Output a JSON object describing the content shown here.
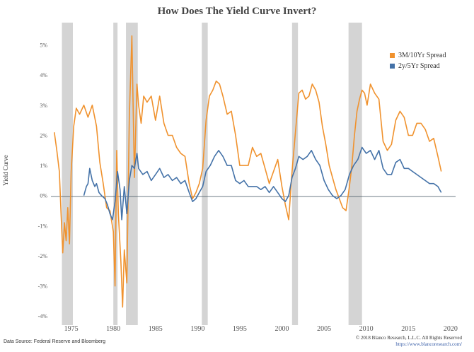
{
  "chart_data": {
    "type": "line",
    "title": "How Does The Yield Curve Invert?",
    "ylabel": "Yield Curve",
    "xlabel": "",
    "xlim": [
      1972.6,
      2020.6
    ],
    "ylim": [
      -4.3,
      5.6
    ],
    "y_ticks": [
      "5%",
      "4%",
      "3%",
      "2%",
      "1%",
      "0%",
      "-1%",
      "-2%",
      "-3%",
      "-4%"
    ],
    "y_tick_values": [
      5,
      4,
      3,
      2,
      1,
      0,
      -1,
      -2,
      -3,
      -4
    ],
    "x_ticks": [
      "1975",
      "1980",
      "1985",
      "1990",
      "1995",
      "2000",
      "2005",
      "2010",
      "2015",
      "2020"
    ],
    "x_tick_values": [
      1975,
      1980,
      1985,
      1990,
      1995,
      2000,
      2005,
      2010,
      2015,
      2020
    ],
    "grid": false,
    "legend_position": "top-right",
    "recessions": [
      [
        1973.9,
        1975.2
      ],
      [
        1980.0,
        1980.5
      ],
      [
        1981.5,
        1982.9
      ],
      [
        1990.5,
        1991.2
      ],
      [
        2001.2,
        2001.9
      ],
      [
        2007.9,
        2009.5
      ]
    ],
    "series": [
      {
        "name": "3M/10Yr Spread",
        "color": "#f0922e",
        "x": [
          1973.0,
          1973.3,
          1973.6,
          1973.8,
          1974.0,
          1974.2,
          1974.4,
          1974.6,
          1974.8,
          1975.0,
          1975.3,
          1975.6,
          1976.0,
          1976.5,
          1977.0,
          1977.5,
          1978.0,
          1978.4,
          1978.8,
          1979.2,
          1979.6,
          1980.0,
          1980.2,
          1980.4,
          1980.6,
          1980.9,
          1981.1,
          1981.3,
          1981.6,
          1981.9,
          1982.2,
          1982.5,
          1982.8,
          1983.0,
          1983.3,
          1983.6,
          1984.0,
          1984.5,
          1985.0,
          1985.5,
          1986.0,
          1986.5,
          1987.0,
          1987.5,
          1988.0,
          1988.5,
          1989.0,
          1989.4,
          1989.8,
          1990.2,
          1990.6,
          1991.0,
          1991.4,
          1991.8,
          1992.2,
          1992.6,
          1993.0,
          1993.5,
          1994.0,
          1994.5,
          1995.0,
          1995.5,
          1996.0,
          1996.5,
          1997.0,
          1997.5,
          1998.0,
          1998.5,
          1999.0,
          1999.5,
          2000.0,
          2000.4,
          2000.8,
          2001.2,
          2001.6,
          2002.0,
          2002.4,
          2002.8,
          2003.2,
          2003.6,
          2004.0,
          2004.4,
          2004.8,
          2005.2,
          2005.6,
          2006.0,
          2006.4,
          2006.8,
          2007.2,
          2007.6,
          2008.0,
          2008.3,
          2008.6,
          2008.9,
          2009.2,
          2009.5,
          2009.8,
          2010.1,
          2010.5,
          2011.0,
          2011.5,
          2012.0,
          2012.5,
          2013.0,
          2013.5,
          2014.0,
          2014.5,
          2015.0,
          2015.5,
          2016.0,
          2016.5,
          2017.0,
          2017.5,
          2018.0,
          2018.5,
          2018.9
        ],
        "values": [
          2.1,
          1.5,
          0.8,
          -0.6,
          -1.9,
          -0.9,
          -1.5,
          -0.4,
          -1.6,
          0.8,
          2.3,
          2.9,
          2.7,
          3.0,
          2.6,
          3.0,
          2.3,
          1.1,
          0.4,
          -0.4,
          -0.5,
          -1.2,
          -3.0,
          1.5,
          -0.6,
          -2.2,
          -3.7,
          -1.8,
          -2.9,
          2.6,
          5.3,
          0.6,
          3.7,
          3.0,
          2.4,
          3.3,
          3.1,
          3.3,
          2.5,
          3.3,
          2.4,
          2.0,
          2.0,
          1.6,
          1.4,
          1.3,
          0.4,
          -0.1,
          0.1,
          0.4,
          0.9,
          2.5,
          3.3,
          3.5,
          3.8,
          3.7,
          3.3,
          2.7,
          2.8,
          2.0,
          1.0,
          1.0,
          1.0,
          1.6,
          1.3,
          1.4,
          0.9,
          0.4,
          0.8,
          1.2,
          0.3,
          -0.3,
          -0.8,
          0.8,
          2.1,
          3.4,
          3.5,
          3.2,
          3.3,
          3.7,
          3.5,
          3.1,
          2.3,
          1.7,
          1.0,
          0.6,
          0.2,
          -0.1,
          -0.4,
          -0.5,
          0.3,
          1.0,
          2.0,
          2.8,
          3.2,
          3.5,
          3.4,
          3.0,
          3.7,
          3.4,
          3.2,
          1.8,
          1.5,
          1.7,
          2.5,
          2.8,
          2.6,
          2.0,
          2.0,
          2.4,
          2.4,
          2.2,
          1.8,
          1.9,
          1.3,
          0.8
        ]
      },
      {
        "name": "2y/5Yr Spread",
        "color": "#4472a8",
        "x": [
          1976.5,
          1976.8,
          1977.0,
          1977.2,
          1977.5,
          1977.8,
          1978.0,
          1978.3,
          1978.6,
          1979.0,
          1979.3,
          1979.6,
          1979.9,
          1980.2,
          1980.5,
          1980.8,
          1981.0,
          1981.3,
          1981.6,
          1981.9,
          1982.2,
          1982.5,
          1982.8,
          1983.0,
          1983.5,
          1984.0,
          1984.5,
          1985.0,
          1985.5,
          1986.0,
          1986.5,
          1987.0,
          1987.5,
          1988.0,
          1988.5,
          1989.0,
          1989.4,
          1989.8,
          1990.2,
          1990.6,
          1991.0,
          1991.5,
          1992.0,
          1992.5,
          1993.0,
          1993.5,
          1994.0,
          1994.5,
          1995.0,
          1995.5,
          1996.0,
          1996.5,
          1997.0,
          1997.5,
          1998.0,
          1998.5,
          1999.0,
          1999.5,
          2000.0,
          2000.4,
          2000.8,
          2001.2,
          2001.6,
          2002.0,
          2002.5,
          2003.0,
          2003.5,
          2004.0,
          2004.5,
          2005.0,
          2005.5,
          2006.0,
          2006.5,
          2007.0,
          2007.5,
          2008.0,
          2008.5,
          2009.0,
          2009.5,
          2010.0,
          2010.5,
          2011.0,
          2011.5,
          2012.0,
          2012.5,
          2013.0,
          2013.5,
          2014.0,
          2014.5,
          2015.0,
          2015.5,
          2016.0,
          2016.5,
          2017.0,
          2017.5,
          2018.0,
          2018.5,
          2018.9
        ],
        "values": [
          0.0,
          0.3,
          0.4,
          0.9,
          0.5,
          0.3,
          0.4,
          0.1,
          0.0,
          -0.1,
          -0.3,
          -0.6,
          -0.8,
          -0.2,
          0.8,
          0.2,
          -0.8,
          0.3,
          -0.6,
          0.5,
          1.0,
          0.9,
          1.4,
          0.9,
          0.7,
          0.8,
          0.5,
          0.7,
          0.9,
          0.6,
          0.7,
          0.5,
          0.6,
          0.4,
          0.5,
          0.1,
          -0.2,
          -0.1,
          0.1,
          0.3,
          0.8,
          1.0,
          1.3,
          1.5,
          1.3,
          1.0,
          1.0,
          0.5,
          0.4,
          0.5,
          0.3,
          0.3,
          0.3,
          0.2,
          0.3,
          0.1,
          0.3,
          0.1,
          -0.1,
          -0.2,
          0.0,
          0.6,
          0.9,
          1.3,
          1.2,
          1.3,
          1.5,
          1.2,
          1.0,
          0.5,
          0.2,
          0.0,
          -0.1,
          0.0,
          0.2,
          0.7,
          1.0,
          1.2,
          1.6,
          1.4,
          1.5,
          1.2,
          1.5,
          0.9,
          0.7,
          0.7,
          1.1,
          1.2,
          0.9,
          0.9,
          0.8,
          0.7,
          0.6,
          0.5,
          0.4,
          0.4,
          0.3,
          0.1
        ]
      }
    ]
  },
  "footer": {
    "source": "Data Source: Federal Reserve and Bloomberg",
    "copyright": "© 2018 Blanco Research, L.L.C. All Rights Reserved",
    "url": "https://www.blancoresearch.com/"
  }
}
